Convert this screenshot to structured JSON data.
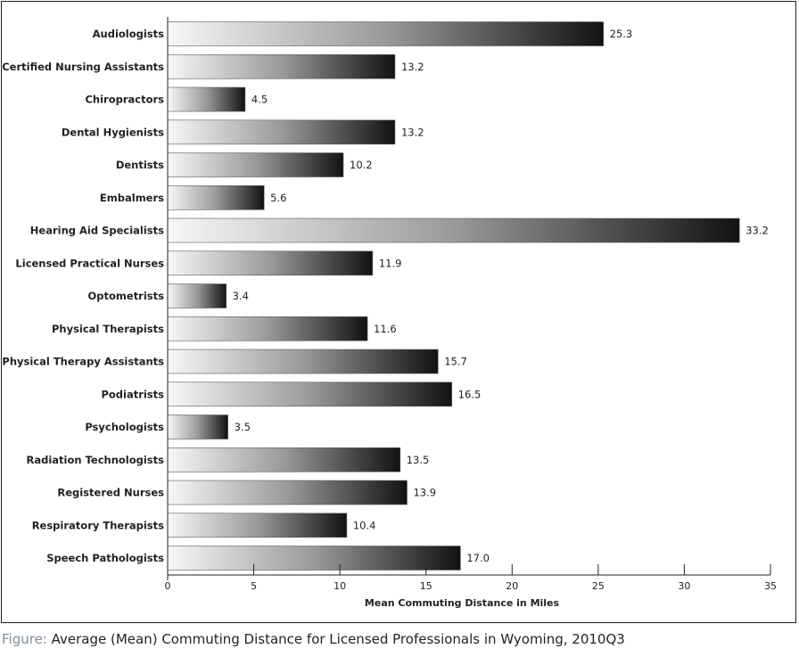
{
  "chart_data": {
    "type": "bar",
    "orientation": "horizontal",
    "categories": [
      "Audiologists",
      "Certified Nursing Assistants",
      "Chiropractors",
      "Dental Hygienists",
      "Dentists",
      "Embalmers",
      "Hearing Aid Specialists",
      "Licensed Practical Nurses",
      "Optometrists",
      "Physical Therapists",
      "Physical Therapy Assistants",
      "Podiatrists",
      "Psychologists",
      "Radiation Technologists",
      "Registered Nurses",
      "Respiratory Therapists",
      "Speech Pathologists"
    ],
    "values": [
      25.3,
      13.2,
      4.5,
      13.2,
      10.2,
      5.6,
      33.2,
      11.9,
      3.4,
      11.6,
      15.7,
      16.5,
      3.5,
      13.5,
      13.9,
      10.4,
      17.0
    ],
    "value_labels": [
      "25.3",
      "13.2",
      "4.5",
      "13.2",
      "10.2",
      "5.6",
      "33.2",
      "11.9",
      "3.4",
      "11.6",
      "15.7",
      "16.5",
      "3.5",
      "13.5",
      "13.9",
      "10.4",
      "17.0"
    ],
    "xlabel": "Mean Commuting Distance in Miles",
    "xlim": [
      0,
      35
    ],
    "xticks": [
      0,
      5,
      10,
      15,
      20,
      25,
      30,
      35
    ],
    "grid": false,
    "legend": "none",
    "bar_fill": "gradient light-to-dark",
    "colors": {
      "bar_start": "#f7f7f7",
      "bar_end": "#121212",
      "text": "#231f20",
      "caption_prefix": "#7f8c98"
    }
  },
  "caption": {
    "prefix": "Figure:",
    "text": " Average (Mean) Commuting Distance for Licensed Professionals in Wyoming, 2010Q3"
  }
}
